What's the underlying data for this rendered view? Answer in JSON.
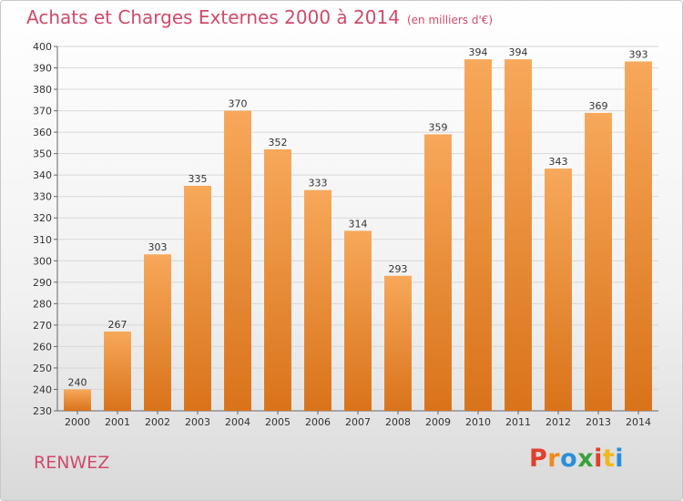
{
  "header": {
    "title": "Achats et Charges Externes 2000 à 2014",
    "subtitle": "(en milliers d'€)"
  },
  "footer": {
    "commune": "RENWEZ",
    "logo": "Proxiti",
    "logo_colors": [
      "#e0402a",
      "#f08a1c",
      "#2a8fd8",
      "#3aa23a",
      "#e0402a",
      "#f0b81c",
      "#2a8fd8"
    ]
  },
  "chart_data": {
    "type": "bar",
    "title": "Achats et Charges Externes 2000 à 2014",
    "subtitle": "(en milliers d'€)",
    "categories": [
      "2000",
      "2001",
      "2002",
      "2003",
      "2004",
      "2005",
      "2006",
      "2007",
      "2008",
      "2009",
      "2010",
      "2011",
      "2012",
      "2013",
      "2014"
    ],
    "values": [
      240,
      267,
      303,
      335,
      370,
      352,
      333,
      314,
      293,
      359,
      394,
      394,
      343,
      369,
      393
    ],
    "ylim": [
      230,
      400
    ],
    "yticks": [
      230,
      240,
      250,
      260,
      270,
      280,
      290,
      300,
      310,
      320,
      330,
      340,
      350,
      360,
      370,
      380,
      390,
      400
    ],
    "grid": true,
    "bar_color_top": "#f7a85a",
    "bar_color_bottom": "#d9731a"
  }
}
